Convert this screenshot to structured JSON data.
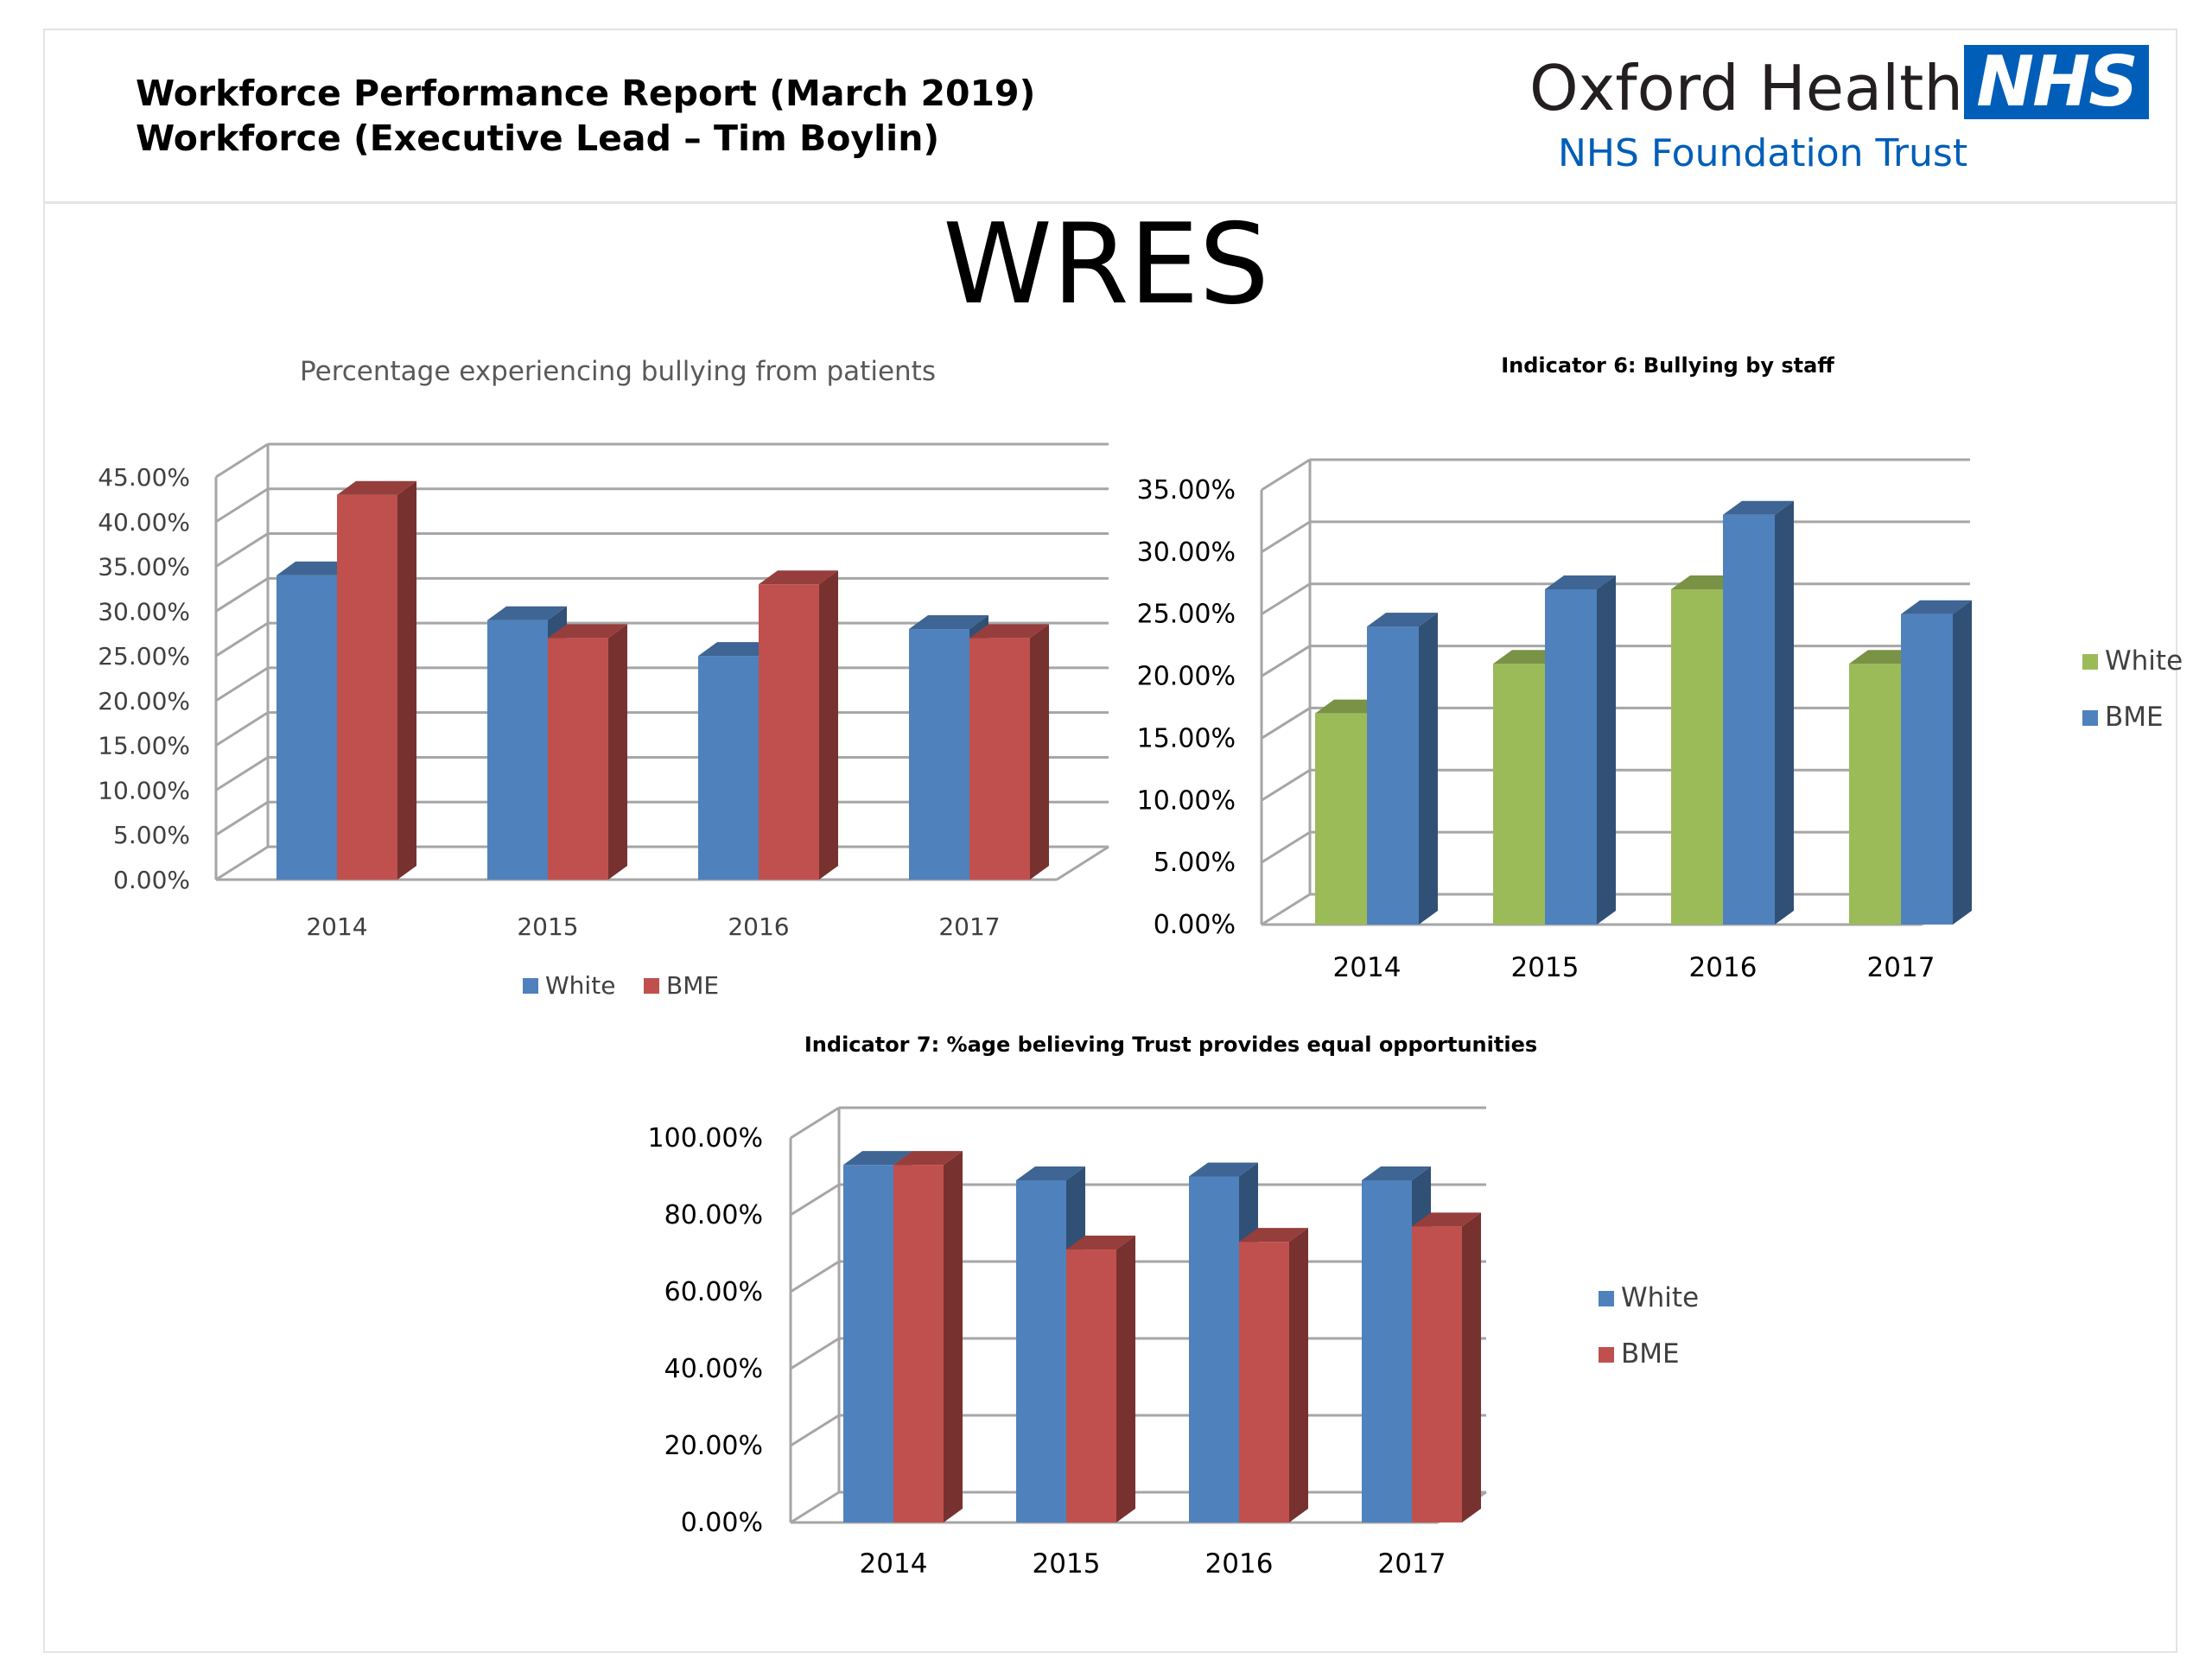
{
  "header": {
    "report_line1": "Workforce Performance Report (March 2019)",
    "report_line2": "Workforce (Executive Lead – Tim Boylin)",
    "logo_org": "Oxford Health",
    "logo_badge": "NHS",
    "logo_sub": "NHS Foundation Trust"
  },
  "page_title": "WRES",
  "colors": {
    "white_blue": "#4f81bd",
    "bme_red": "#c0504d",
    "white_green": "#9bbb59",
    "bme_blue": "#4f81bd",
    "nhs_blue": "#005eb8"
  },
  "chart_data": [
    {
      "type": "bar",
      "title": "Percentage experiencing bullying from patients",
      "categories": [
        "2014",
        "2015",
        "2016",
        "2017"
      ],
      "series": [
        {
          "name": "White",
          "values": [
            34,
            29,
            25,
            28
          ],
          "color": "#4f81bd"
        },
        {
          "name": "BME",
          "values": [
            43,
            27,
            33,
            27
          ],
          "color": "#c0504d"
        }
      ],
      "ylim": [
        0,
        45
      ],
      "yticks": [
        "0.00%",
        "5.00%",
        "10.00%",
        "15.00%",
        "20.00%",
        "25.00%",
        "30.00%",
        "35.00%",
        "40.00%",
        "45.00%"
      ],
      "grid": true,
      "legend": "bottom"
    },
    {
      "type": "bar",
      "title": "Indicator 6: Bullying by staff",
      "categories": [
        "2014",
        "2015",
        "2016",
        "2017"
      ],
      "series": [
        {
          "name": "White",
          "values": [
            17,
            21,
            27,
            21
          ],
          "color": "#9bbb59"
        },
        {
          "name": "BME",
          "values": [
            24,
            27,
            33,
            25
          ],
          "color": "#4f81bd"
        }
      ],
      "ylim": [
        0,
        35
      ],
      "yticks": [
        "0.00%",
        "5.00%",
        "10.00%",
        "15.00%",
        "20.00%",
        "25.00%",
        "30.00%",
        "35.00%"
      ],
      "grid": true,
      "legend": "right"
    },
    {
      "type": "bar",
      "title": "Indicator 7: %age believing Trust provides equal opportunities",
      "categories": [
        "2014",
        "2015",
        "2016",
        "2017"
      ],
      "series": [
        {
          "name": "White",
          "values": [
            93,
            89,
            90,
            89
          ],
          "color": "#4f81bd"
        },
        {
          "name": "BME",
          "values": [
            93,
            71,
            73,
            77
          ],
          "color": "#c0504d"
        }
      ],
      "ylim": [
        0,
        100
      ],
      "yticks": [
        "0.00%",
        "20.00%",
        "40.00%",
        "60.00%",
        "80.00%",
        "100.00%"
      ],
      "grid": true,
      "legend": "right"
    }
  ]
}
